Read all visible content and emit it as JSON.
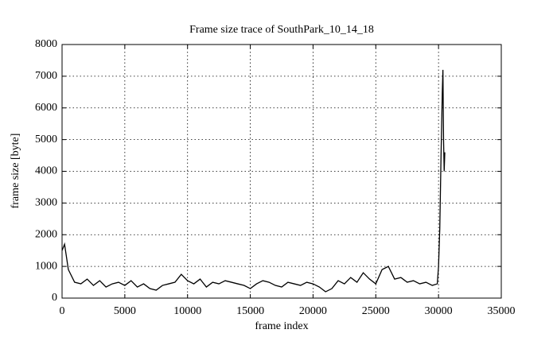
{
  "chart_data": {
    "type": "line",
    "title": "Frame size trace of SouthPark_10_14_18",
    "x_label": "frame index",
    "y_label": "frame size [byte]",
    "xlim": [
      0,
      35000
    ],
    "xticks": [
      0,
      5000,
      10000,
      15000,
      20000,
      25000,
      30000,
      35000
    ],
    "ylim": [
      0,
      8000
    ],
    "yticks": [
      0,
      1000,
      2000,
      3000,
      4000,
      5000,
      6000,
      7000,
      8000
    ],
    "grid": true,
    "series": [
      {
        "color": "#000000",
        "x": [
          0,
          200,
          500,
          1000,
          1500,
          2000,
          2500,
          3000,
          3500,
          4000,
          4500,
          5000,
          5500,
          6000,
          6500,
          7000,
          7500,
          8000,
          8500,
          9000,
          9500,
          10000,
          10500,
          11000,
          11500,
          12000,
          12500,
          13000,
          13500,
          14000,
          14500,
          15000,
          15500,
          16000,
          16500,
          17000,
          17500,
          18000,
          18500,
          19000,
          19500,
          20000,
          20500,
          21000,
          21500,
          22000,
          22500,
          23000,
          23500,
          24000,
          24500,
          25000,
          25500,
          26000,
          26500,
          27000,
          27500,
          28000,
          28500,
          29000,
          29500,
          29900,
          30000,
          30100,
          30200,
          30300,
          30350,
          30400,
          30450,
          30500
        ],
        "values": [
          1500,
          1700,
          900,
          500,
          450,
          600,
          400,
          550,
          350,
          450,
          500,
          400,
          550,
          350,
          450,
          300,
          250,
          400,
          450,
          500,
          750,
          550,
          450,
          600,
          350,
          500,
          450,
          550,
          500,
          450,
          400,
          300,
          450,
          550,
          500,
          400,
          350,
          500,
          450,
          400,
          500,
          450,
          350,
          200,
          300,
          550,
          450,
          650,
          500,
          800,
          600,
          450,
          900,
          1000,
          600,
          650,
          500,
          550,
          450,
          500,
          400,
          450,
          1000,
          2200,
          4500,
          6500,
          7200,
          5000,
          4000,
          4600
        ]
      }
    ]
  }
}
